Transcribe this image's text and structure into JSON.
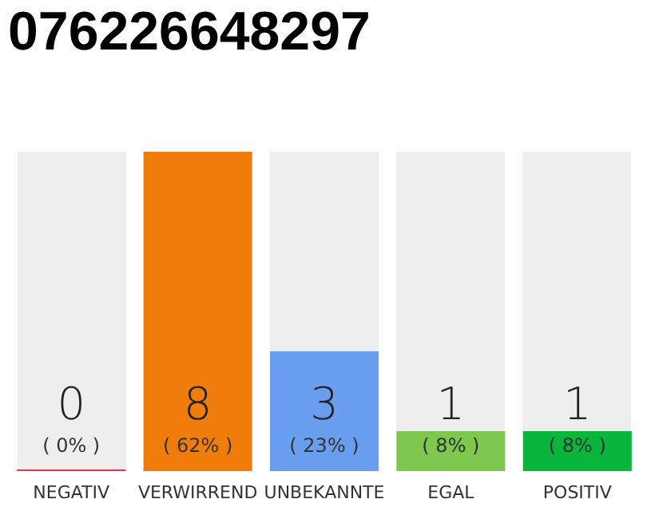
{
  "chart_data": {
    "type": "bar",
    "title": "076226648297",
    "categories": [
      "NEGATIV",
      "VERWIRREND",
      "UNBEKANNTE",
      "EGAL",
      "POSITIV"
    ],
    "values": [
      0,
      8,
      3,
      1,
      1
    ],
    "colors": [
      "#e8304a",
      "#f07c0a",
      "#6a9ff0",
      "#7ec850",
      "#0ab53c"
    ],
    "value_labels": [
      "0\n( 0% )",
      "8\n( 62% )",
      "3\n( 23% )",
      "1\n( 8% )",
      "1\n( 8% )"
    ]
  }
}
